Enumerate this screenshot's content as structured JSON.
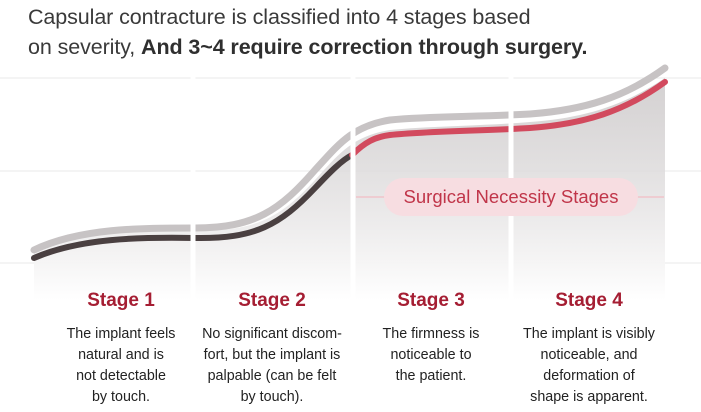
{
  "heading": {
    "line1": "Capsular contracture is classified into 4 stages based",
    "line2_plain": "on severity, ",
    "line2_bold": "And 3~4 require correction through surgery."
  },
  "callout": {
    "label": "Surgical Necessity Stages"
  },
  "stages": [
    {
      "title": "Stage 1",
      "lines": [
        "The implant feels",
        "natural and is",
        "not detectable",
        "by touch."
      ]
    },
    {
      "title": "Stage 2",
      "lines": [
        "No significant discom-",
        "fort, but the implant is",
        "palpable (can be felt",
        "by touch)."
      ]
    },
    {
      "title": "Stage 3",
      "lines": [
        "The firmness is",
        "noticeable to",
        "the patient."
      ]
    },
    {
      "title": "Stage 4",
      "lines": [
        "The implant is visibly",
        "noticeable, and",
        "deformation of",
        "shape is apparent."
      ]
    }
  ],
  "colors": {
    "accent": "#c63a4e",
    "dark_curve": "#4a4041",
    "shadow_curve": "#c7c3c4",
    "stage_title": "#a51e33"
  }
}
